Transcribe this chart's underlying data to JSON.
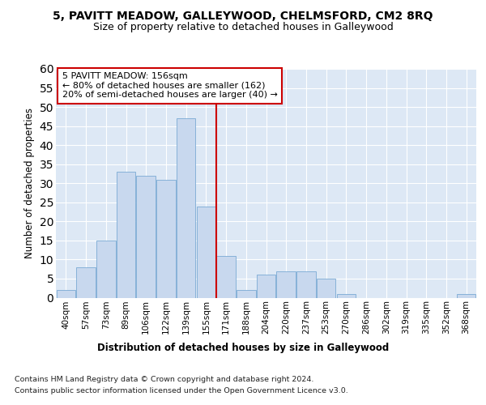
{
  "title": "5, PAVITT MEADOW, GALLEYWOOD, CHELMSFORD, CM2 8RQ",
  "subtitle": "Size of property relative to detached houses in Galleywood",
  "xlabel": "Distribution of detached houses by size in Galleywood",
  "ylabel": "Number of detached properties",
  "categories": [
    "40sqm",
    "57sqm",
    "73sqm",
    "89sqm",
    "106sqm",
    "122sqm",
    "139sqm",
    "155sqm",
    "171sqm",
    "188sqm",
    "204sqm",
    "220sqm",
    "237sqm",
    "253sqm",
    "270sqm",
    "286sqm",
    "302sqm",
    "319sqm",
    "335sqm",
    "352sqm",
    "368sqm"
  ],
  "values": [
    2,
    8,
    15,
    33,
    32,
    31,
    47,
    24,
    11,
    2,
    6,
    7,
    7,
    5,
    1,
    0,
    0,
    0,
    0,
    0,
    1
  ],
  "bar_color": "#c8d8ee",
  "bar_edge_color": "#7aaad4",
  "reference_line_color": "#cc0000",
  "annotation_text": "5 PAVITT MEADOW: 156sqm\n← 80% of detached houses are smaller (162)\n20% of semi-detached houses are larger (40) →",
  "annotation_box_facecolor": "#ffffff",
  "annotation_box_edgecolor": "#cc0000",
  "ylim": [
    0,
    60
  ],
  "yticks": [
    0,
    5,
    10,
    15,
    20,
    25,
    30,
    35,
    40,
    45,
    50,
    55,
    60
  ],
  "plot_bg_color": "#dde8f5",
  "grid_color": "#ffffff",
  "title_fontsize": 10,
  "subtitle_fontsize": 9,
  "axis_label_fontsize": 8.5,
  "tick_fontsize": 7.5,
  "annotation_fontsize": 8,
  "footnote_fontsize": 6.8,
  "footnote1": "Contains HM Land Registry data © Crown copyright and database right 2024.",
  "footnote2": "Contains public sector information licensed under the Open Government Licence v3.0."
}
